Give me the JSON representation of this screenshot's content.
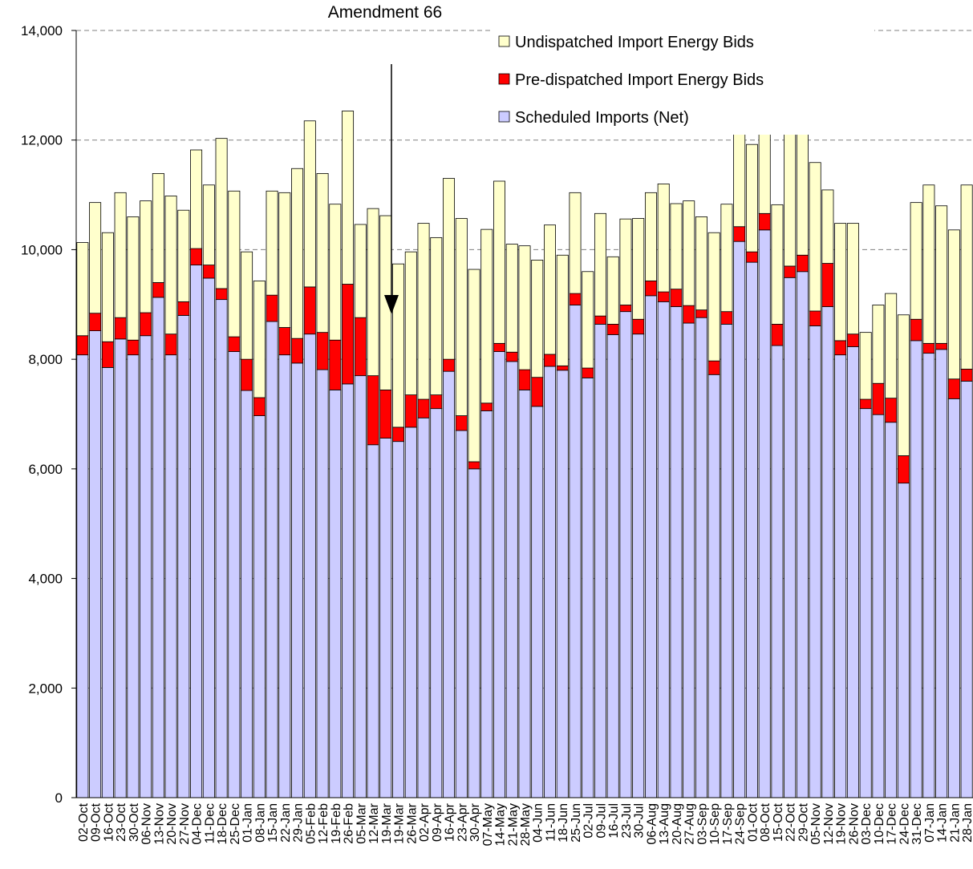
{
  "chart_data": {
    "type": "stacked_bar",
    "annotation": "Amendment 66",
    "categories": [
      "02-Oct",
      "09-Oct",
      "16-Oct",
      "23-Oct",
      "30-Oct",
      "06-Nov",
      "13-Nov",
      "20-Nov",
      "27-Nov",
      "04-Dec",
      "11-Dec",
      "18-Dec",
      "25-Dec",
      "01-Jan",
      "08-Jan",
      "15-Jan",
      "22-Jan",
      "29-Jan",
      "05-Feb",
      "12-Feb",
      "19-Feb",
      "26-Feb",
      "05-Mar",
      "12-Mar",
      "19-Mar",
      "19-Mar",
      "26-Mar",
      "02-Apr",
      "09-Apr",
      "16-Apr",
      "23-Apr",
      "30-Apr",
      "07-May",
      "14-May",
      "21-May",
      "28-May",
      "04-Jun",
      "11-Jun",
      "18-Jun",
      "25-Jun",
      "02-Jul",
      "09-Jul",
      "16-Jul",
      "23-Jul",
      "30-Jul",
      "06-Aug",
      "13-Aug",
      "20-Aug",
      "27-Aug",
      "03-Sep",
      "10-Sep",
      "17-Sep",
      "24-Sep",
      "01-Oct",
      "08-Oct",
      "15-Oct",
      "22-Oct",
      "29-Oct",
      "05-Nov",
      "12-Nov",
      "19-Nov",
      "26-Nov",
      "03-Dec",
      "10-Dec",
      "17-Dec",
      "24-Dec",
      "31-Dec",
      "07-Jan",
      "14-Jan",
      "21-Jan",
      "28-Jan"
    ],
    "series": [
      {
        "name": "Scheduled Imports (Net)",
        "color": "#ccccff",
        "values": [
          8080,
          8520,
          7850,
          8370,
          8080,
          8430,
          9130,
          8080,
          8800,
          9720,
          9480,
          9090,
          8140,
          7430,
          6970,
          8690,
          8080,
          7930,
          8460,
          7810,
          7440,
          7550,
          7700,
          6440,
          6560,
          6500,
          6760,
          6930,
          7100,
          7780,
          6700,
          6000,
          7060,
          8140,
          7960,
          7440,
          7140,
          7870,
          7800,
          8990,
          7660,
          8640,
          8450,
          8870,
          8460,
          9160,
          9050,
          8960,
          8660,
          8760,
          7720,
          8640,
          10150,
          9770,
          10360,
          8250,
          9490,
          9600,
          8610,
          8960,
          8080,
          8230,
          7100,
          6990,
          6850,
          5740,
          8340,
          8110,
          8180,
          7280,
          7600
        ]
      },
      {
        "name": "Pre-dispatched Import Energy Bids",
        "color": "#ff0000",
        "values": [
          350,
          320,
          470,
          390,
          270,
          420,
          270,
          380,
          250,
          300,
          240,
          200,
          270,
          570,
          330,
          480,
          500,
          450,
          860,
          680,
          910,
          1820,
          1060,
          1260,
          880,
          260,
          590,
          340,
          250,
          220,
          270,
          130,
          140,
          150,
          170,
          370,
          530,
          220,
          80,
          210,
          180,
          150,
          190,
          120,
          270,
          270,
          180,
          320,
          320,
          140,
          250,
          230,
          270,
          190,
          300,
          390,
          210,
          300,
          270,
          790,
          260,
          230,
          170,
          570,
          440,
          500,
          390,
          180,
          110,
          360,
          220
        ]
      },
      {
        "name": "Undispatched Import Energy Bids",
        "color": "#ffffcc",
        "values": [
          1700,
          2020,
          1990,
          2280,
          2250,
          2040,
          1990,
          2520,
          1670,
          1800,
          1460,
          2740,
          2660,
          1960,
          2130,
          1900,
          2460,
          3100,
          3030,
          2900,
          2480,
          3160,
          1700,
          3050,
          3180,
          2980,
          2610,
          3210,
          2870,
          3300,
          3600,
          3510,
          3170,
          2960,
          1970,
          2260,
          2140,
          2360,
          2020,
          1840,
          1760,
          1870,
          1230,
          1570,
          1840,
          1610,
          1970,
          1560,
          1910,
          1700,
          2340,
          1960,
          2130,
          1960,
          1750,
          2180,
          2600,
          2530,
          2710,
          1340,
          2140,
          2020,
          1220,
          1430,
          1910,
          2570,
          2130,
          2890,
          2510,
          2720,
          3360
        ]
      }
    ],
    "ylim": [
      0,
      14000
    ],
    "yticks": [
      0,
      {
        "value": 2000,
        "label": "2,000"
      },
      {
        "value": 4000,
        "label": "4,000"
      },
      {
        "value": 6000,
        "label": "6,000"
      },
      {
        "value": 8000,
        "label": "8,000"
      },
      {
        "value": 10000,
        "label": "10,000"
      },
      {
        "value": 12000,
        "label": "12,000"
      },
      {
        "value": 14000,
        "label": "14,000"
      }
    ],
    "grid": true,
    "legend": "top-right"
  }
}
